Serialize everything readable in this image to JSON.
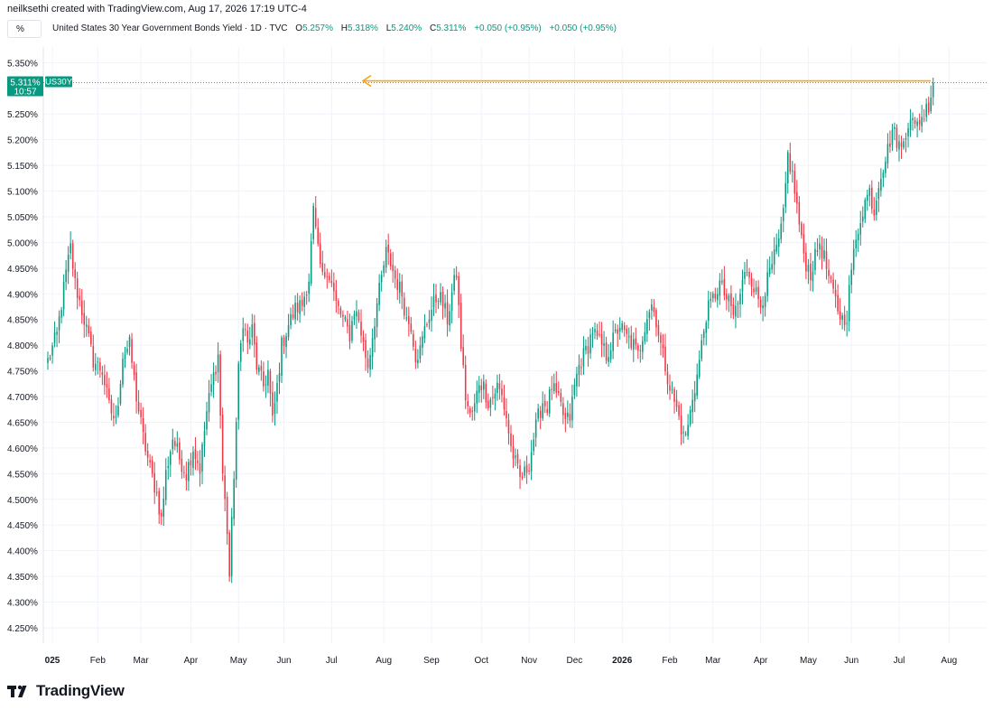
{
  "header": {
    "attribution": "neilksethi created with TradingView.com, Aug 17, 2026 17:19 UTC-4",
    "unit_button": "%"
  },
  "legend": {
    "title": "United States 30 Year Government Bonds Yield · 1D · TVC",
    "open_label": "O",
    "open": "5.257%",
    "high_label": "H",
    "high": "5.318%",
    "low_label": "L",
    "low": "5.240%",
    "close_label": "C",
    "close": "5.311%",
    "change1": "+0.050 (+0.95%)",
    "change2": "+0.050 (+0.95%)"
  },
  "footer": {
    "brand": "TradingView"
  },
  "colors": {
    "up": "#089981",
    "down": "#f23645",
    "arrow": "#f5a623",
    "price_line": "#2196f3",
    "grid": "#f0f3fa"
  },
  "chart_data": {
    "type": "candlestick",
    "title": "United States 30 Year Government Bonds Yield",
    "ylim": [
      4.22,
      5.37
    ],
    "y_ticks": [
      "5.350%",
      "5.300%",
      "5.250%",
      "5.200%",
      "5.150%",
      "5.100%",
      "5.050%",
      "5.000%",
      "4.950%",
      "4.900%",
      "4.850%",
      "4.800%",
      "4.750%",
      "4.700%",
      "4.650%",
      "4.600%",
      "4.550%",
      "4.500%",
      "4.450%",
      "4.400%",
      "4.350%",
      "4.300%",
      "4.250%"
    ],
    "y_tick_values": [
      5.35,
      5.3,
      5.25,
      5.2,
      5.15,
      5.1,
      5.05,
      5.0,
      4.95,
      4.9,
      4.85,
      4.8,
      4.75,
      4.7,
      4.65,
      4.6,
      4.55,
      4.5,
      4.45,
      4.4,
      4.35,
      4.3,
      4.25
    ],
    "x_ticks": [
      "025",
      "Feb",
      "Mar",
      "Apr",
      "May",
      "Jun",
      "Jul",
      "Aug",
      "Sep",
      "Oct",
      "Nov",
      "Dec",
      "2026",
      "Feb",
      "Mar",
      "Apr",
      "May",
      "Jun",
      "Jul",
      "Aug"
    ],
    "x_tick_bold": [
      true,
      false,
      false,
      false,
      false,
      false,
      false,
      false,
      false,
      false,
      false,
      false,
      true,
      false,
      false,
      false,
      false,
      false,
      false,
      false
    ],
    "x_tick_index": [
      2,
      22,
      41,
      63,
      84,
      104,
      125,
      148,
      169,
      191,
      212,
      232,
      253,
      274,
      293,
      314,
      335,
      354,
      375,
      397
    ],
    "n_bars": 410,
    "anchors": [
      [
        0,
        4.77
      ],
      [
        4,
        4.82
      ],
      [
        8,
        4.94
      ],
      [
        10,
        4.99
      ],
      [
        12,
        4.92
      ],
      [
        16,
        4.85
      ],
      [
        20,
        4.77
      ],
      [
        24,
        4.75
      ],
      [
        27,
        4.68
      ],
      [
        30,
        4.65
      ],
      [
        33,
        4.78
      ],
      [
        36,
        4.8
      ],
      [
        39,
        4.7
      ],
      [
        42,
        4.62
      ],
      [
        45,
        4.56
      ],
      [
        48,
        4.51
      ],
      [
        50,
        4.46
      ],
      [
        52,
        4.55
      ],
      [
        55,
        4.62
      ],
      [
        58,
        4.58
      ],
      [
        61,
        4.55
      ],
      [
        64,
        4.6
      ],
      [
        67,
        4.56
      ],
      [
        70,
        4.67
      ],
      [
        72,
        4.72
      ],
      [
        75,
        4.78
      ],
      [
        77,
        4.55
      ],
      [
        79,
        4.44
      ],
      [
        80,
        4.35
      ],
      [
        82,
        4.55
      ],
      [
        84,
        4.75
      ],
      [
        86,
        4.85
      ],
      [
        88,
        4.8
      ],
      [
        90,
        4.83
      ],
      [
        92,
        4.76
      ],
      [
        95,
        4.72
      ],
      [
        97,
        4.75
      ],
      [
        99,
        4.65
      ],
      [
        101,
        4.72
      ],
      [
        103,
        4.8
      ],
      [
        106,
        4.84
      ],
      [
        109,
        4.87
      ],
      [
        112,
        4.88
      ],
      [
        115,
        4.93
      ],
      [
        117,
        5.06
      ],
      [
        119,
        4.98
      ],
      [
        121,
        4.93
      ],
      [
        123,
        4.95
      ],
      [
        125,
        4.92
      ],
      [
        127,
        4.88
      ],
      [
        130,
        4.85
      ],
      [
        133,
        4.82
      ],
      [
        135,
        4.87
      ],
      [
        137,
        4.85
      ],
      [
        139,
        4.8
      ],
      [
        141,
        4.76
      ],
      [
        143,
        4.82
      ],
      [
        145,
        4.88
      ],
      [
        147,
        4.93
      ],
      [
        149,
        4.98
      ],
      [
        151,
        4.96
      ],
      [
        153,
        4.93
      ],
      [
        156,
        4.9
      ],
      [
        158,
        4.85
      ],
      [
        160,
        4.84
      ],
      [
        162,
        4.78
      ],
      [
        164,
        4.79
      ],
      [
        166,
        4.83
      ],
      [
        168,
        4.86
      ],
      [
        170,
        4.88
      ],
      [
        172,
        4.9
      ],
      [
        174,
        4.88
      ],
      [
        176,
        4.85
      ],
      [
        178,
        4.9
      ],
      [
        180,
        4.94
      ],
      [
        182,
        4.8
      ],
      [
        184,
        4.7
      ],
      [
        186,
        4.66
      ],
      [
        188,
        4.68
      ],
      [
        190,
        4.73
      ],
      [
        192,
        4.72
      ],
      [
        194,
        4.69
      ],
      [
        196,
        4.7
      ],
      [
        198,
        4.72
      ],
      [
        200,
        4.7
      ],
      [
        202,
        4.66
      ],
      [
        204,
        4.6
      ],
      [
        206,
        4.57
      ],
      [
        208,
        4.54
      ],
      [
        210,
        4.55
      ],
      [
        212,
        4.57
      ],
      [
        214,
        4.62
      ],
      [
        216,
        4.66
      ],
      [
        218,
        4.69
      ],
      [
        220,
        4.68
      ],
      [
        222,
        4.72
      ],
      [
        224,
        4.7
      ],
      [
        226,
        4.68
      ],
      [
        228,
        4.65
      ],
      [
        230,
        4.66
      ],
      [
        232,
        4.72
      ],
      [
        234,
        4.76
      ],
      [
        236,
        4.78
      ],
      [
        238,
        4.8
      ],
      [
        240,
        4.83
      ],
      [
        242,
        4.81
      ],
      [
        244,
        4.8
      ],
      [
        246,
        4.78
      ],
      [
        248,
        4.8
      ],
      [
        250,
        4.82
      ],
      [
        252,
        4.84
      ],
      [
        254,
        4.82
      ],
      [
        256,
        4.81
      ],
      [
        258,
        4.8
      ],
      [
        260,
        4.78
      ],
      [
        262,
        4.82
      ],
      [
        264,
        4.86
      ],
      [
        266,
        4.88
      ],
      [
        268,
        4.85
      ],
      [
        270,
        4.8
      ],
      [
        272,
        4.76
      ],
      [
        274,
        4.72
      ],
      [
        276,
        4.69
      ],
      [
        278,
        4.66
      ],
      [
        280,
        4.62
      ],
      [
        282,
        4.64
      ],
      [
        284,
        4.7
      ],
      [
        286,
        4.74
      ],
      [
        288,
        4.8
      ],
      [
        290,
        4.86
      ],
      [
        292,
        4.88
      ],
      [
        294,
        4.9
      ],
      [
        296,
        4.92
      ],
      [
        298,
        4.9
      ],
      [
        300,
        4.88
      ],
      [
        302,
        4.86
      ],
      [
        304,
        4.88
      ],
      [
        306,
        4.92
      ],
      [
        308,
        4.95
      ],
      [
        310,
        4.93
      ],
      [
        312,
        4.9
      ],
      [
        314,
        4.88
      ],
      [
        316,
        4.91
      ],
      [
        318,
        4.94
      ],
      [
        320,
        4.97
      ],
      [
        322,
        5.0
      ],
      [
        324,
        5.05
      ],
      [
        326,
        5.17
      ],
      [
        328,
        5.13
      ],
      [
        330,
        5.07
      ],
      [
        332,
        5.0
      ],
      [
        334,
        4.96
      ],
      [
        336,
        4.94
      ],
      [
        338,
        4.97
      ],
      [
        340,
        5.0
      ],
      [
        342,
        4.97
      ],
      [
        344,
        4.93
      ],
      [
        346,
        4.9
      ],
      [
        348,
        4.87
      ],
      [
        350,
        4.85
      ],
      [
        352,
        4.86
      ],
      [
        354,
        4.95
      ],
      [
        356,
        5.0
      ],
      [
        358,
        5.05
      ],
      [
        360,
        5.08
      ],
      [
        362,
        5.1
      ],
      [
        364,
        5.06
      ],
      [
        366,
        5.12
      ],
      [
        368,
        5.15
      ],
      [
        370,
        5.18
      ],
      [
        372,
        5.22
      ],
      [
        374,
        5.2
      ],
      [
        376,
        5.18
      ],
      [
        378,
        5.22
      ],
      [
        380,
        5.25
      ],
      [
        382,
        5.22
      ],
      [
        384,
        5.24
      ],
      [
        386,
        5.25
      ],
      [
        388,
        5.27
      ],
      [
        390,
        5.31
      ]
    ],
    "last_price": "5.311%",
    "countdown": "10:57",
    "symbol": "US30Y"
  }
}
